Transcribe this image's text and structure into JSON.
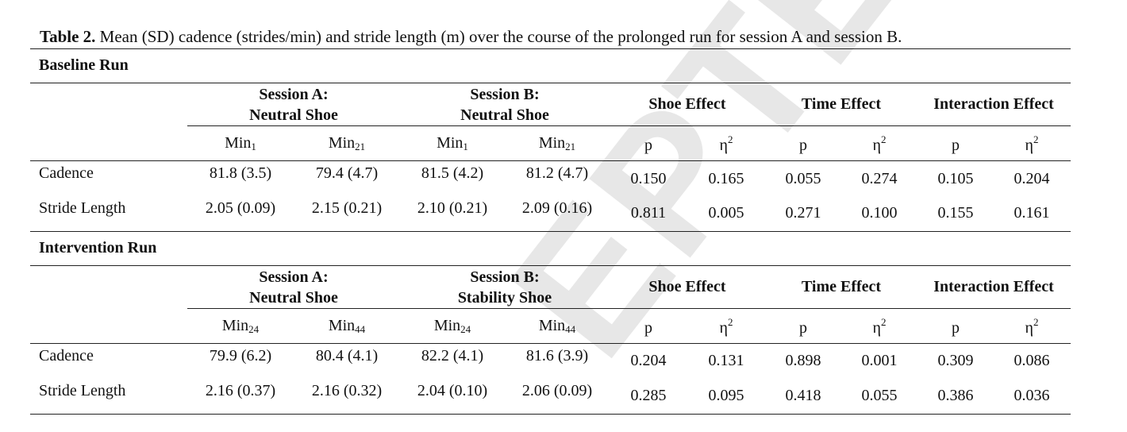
{
  "caption": {
    "label": "Table 2.",
    "text": " Mean (SD) cadence (strides/min) and stride length (m) over the course of the prolonged run for session A and session B."
  },
  "watermark": "EPTED",
  "sections": [
    {
      "title": "Baseline Run",
      "session_a": [
        "Session A:",
        "Neutral Shoe"
      ],
      "session_b": [
        "Session B:",
        "Neutral Shoe"
      ],
      "effects": [
        "Shoe Effect",
        "Time Effect",
        "Interaction Effect"
      ],
      "sub_headers": {
        "min_base": "Min",
        "a_first": "1",
        "a_second": "21",
        "b_first": "1",
        "b_second": "21",
        "p": "p",
        "eta": "η",
        "eta_sup": "2"
      },
      "rows": [
        {
          "label": "Cadence",
          "values": [
            "81.8 (3.5)",
            "79.4 (4.7)",
            "81.5 (4.2)",
            "81.2 (4.7)",
            "0.150",
            "0.165",
            "0.055",
            "0.274",
            "0.105",
            "0.204"
          ]
        },
        {
          "label": "Stride Length",
          "values": [
            "2.05 (0.09)",
            "2.15 (0.21)",
            "2.10 (0.21)",
            "2.09 (0.16)",
            "0.811",
            "0.005",
            "0.271",
            "0.100",
            "0.155",
            "0.161"
          ]
        }
      ]
    },
    {
      "title": "Intervention Run",
      "session_a": [
        "Session A:",
        "Neutral Shoe"
      ],
      "session_b": [
        "Session B:",
        "Stability Shoe"
      ],
      "effects": [
        "Shoe Effect",
        "Time Effect",
        "Interaction Effect"
      ],
      "sub_headers": {
        "min_base": "Min",
        "a_first": "24",
        "a_second": "44",
        "b_first": "24",
        "b_second": "44",
        "p": "p",
        "eta": "η",
        "eta_sup": "2"
      },
      "rows": [
        {
          "label": "Cadence",
          "values": [
            "79.9 (6.2)",
            "80.4 (4.1)",
            "82.2 (4.1)",
            "81.6 (3.9)",
            "0.204",
            "0.131",
            "0.898",
            "0.001",
            "0.309",
            "0.086"
          ]
        },
        {
          "label": "Stride Length",
          "values": [
            "2.16 (0.37)",
            "2.16 (0.32)",
            "2.04 (0.10)",
            "2.06 (0.09)",
            "0.285",
            "0.095",
            "0.418",
            "0.055",
            "0.386",
            "0.036"
          ]
        }
      ]
    }
  ]
}
